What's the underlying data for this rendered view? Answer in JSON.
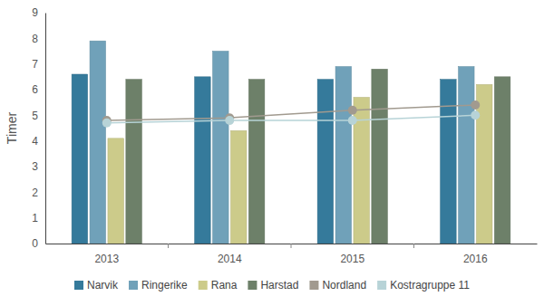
{
  "chart_data": {
    "type": "bar",
    "y_label": "Timer",
    "categories": [
      "2013",
      "2014",
      "2015",
      "2016"
    ],
    "series": [
      {
        "name": "Narvik",
        "type": "bar",
        "color": "#357a9b",
        "values": [
          6.6,
          6.5,
          6.4,
          6.4
        ]
      },
      {
        "name": "Ringerike",
        "type": "bar",
        "color": "#70a1b9",
        "values": [
          7.9,
          7.5,
          6.9,
          6.9
        ]
      },
      {
        "name": "Rana",
        "type": "bar",
        "color": "#cccb8a",
        "values": [
          4.1,
          4.4,
          5.7,
          6.2
        ]
      },
      {
        "name": "Harstad",
        "type": "bar",
        "color": "#6d8069",
        "values": [
          6.4,
          6.4,
          6.8,
          6.5
        ]
      },
      {
        "name": "Nordland",
        "type": "line",
        "marker": "circle",
        "color": "#a19a8f",
        "values": [
          4.8,
          4.9,
          5.2,
          5.4
        ]
      },
      {
        "name": "Kostragruppe 11",
        "type": "line",
        "marker": "circle",
        "color": "#b7d3d7",
        "values": [
          4.7,
          4.8,
          4.8,
          5.0
        ]
      }
    ],
    "ylim": [
      0,
      9
    ],
    "yticks": [
      0,
      1,
      2,
      3,
      4,
      5,
      6,
      7,
      8,
      9
    ],
    "grid": false,
    "legend": "bottom"
  }
}
